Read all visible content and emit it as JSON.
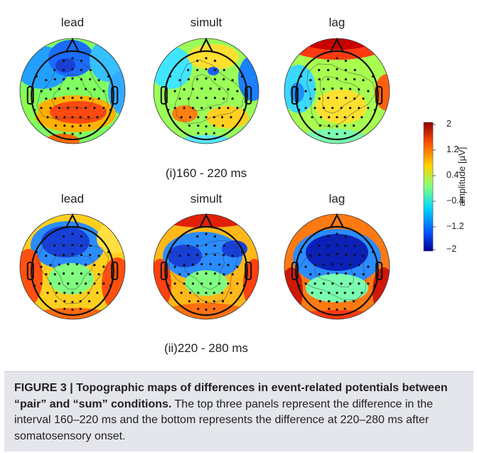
{
  "figure": {
    "rows": [
      {
        "interval_label": "(i)160 - 220 ms",
        "panels": [
          {
            "title": "lead"
          },
          {
            "title": "simult"
          },
          {
            "title": "lag"
          }
        ]
      },
      {
        "interval_label": "(ii)220 - 280 ms",
        "panels": [
          {
            "title": "lead"
          },
          {
            "title": "simult"
          },
          {
            "title": "lag"
          }
        ]
      }
    ],
    "colorbar": {
      "label": "amplitude [µV]",
      "ticks": [
        "2",
        "1.2",
        "0.4",
        "−0.4",
        "−1.2",
        "−2"
      ],
      "min": -2,
      "max": 2,
      "colormap": [
        "#00008f",
        "#0050ff",
        "#00d5ff",
        "#7fff7f",
        "#ffd400",
        "#ff5000",
        "#8f0000"
      ]
    }
  },
  "caption": {
    "bold_text": "FIGURE 3 | Topographic maps of differences in event-related potentials between “pair” and “sum” conditions.",
    "body_text": " The top three panels represent the difference in the interval 160–220 ms and the bottom represents the difference at 220–280 ms after somatosensory onset."
  }
}
